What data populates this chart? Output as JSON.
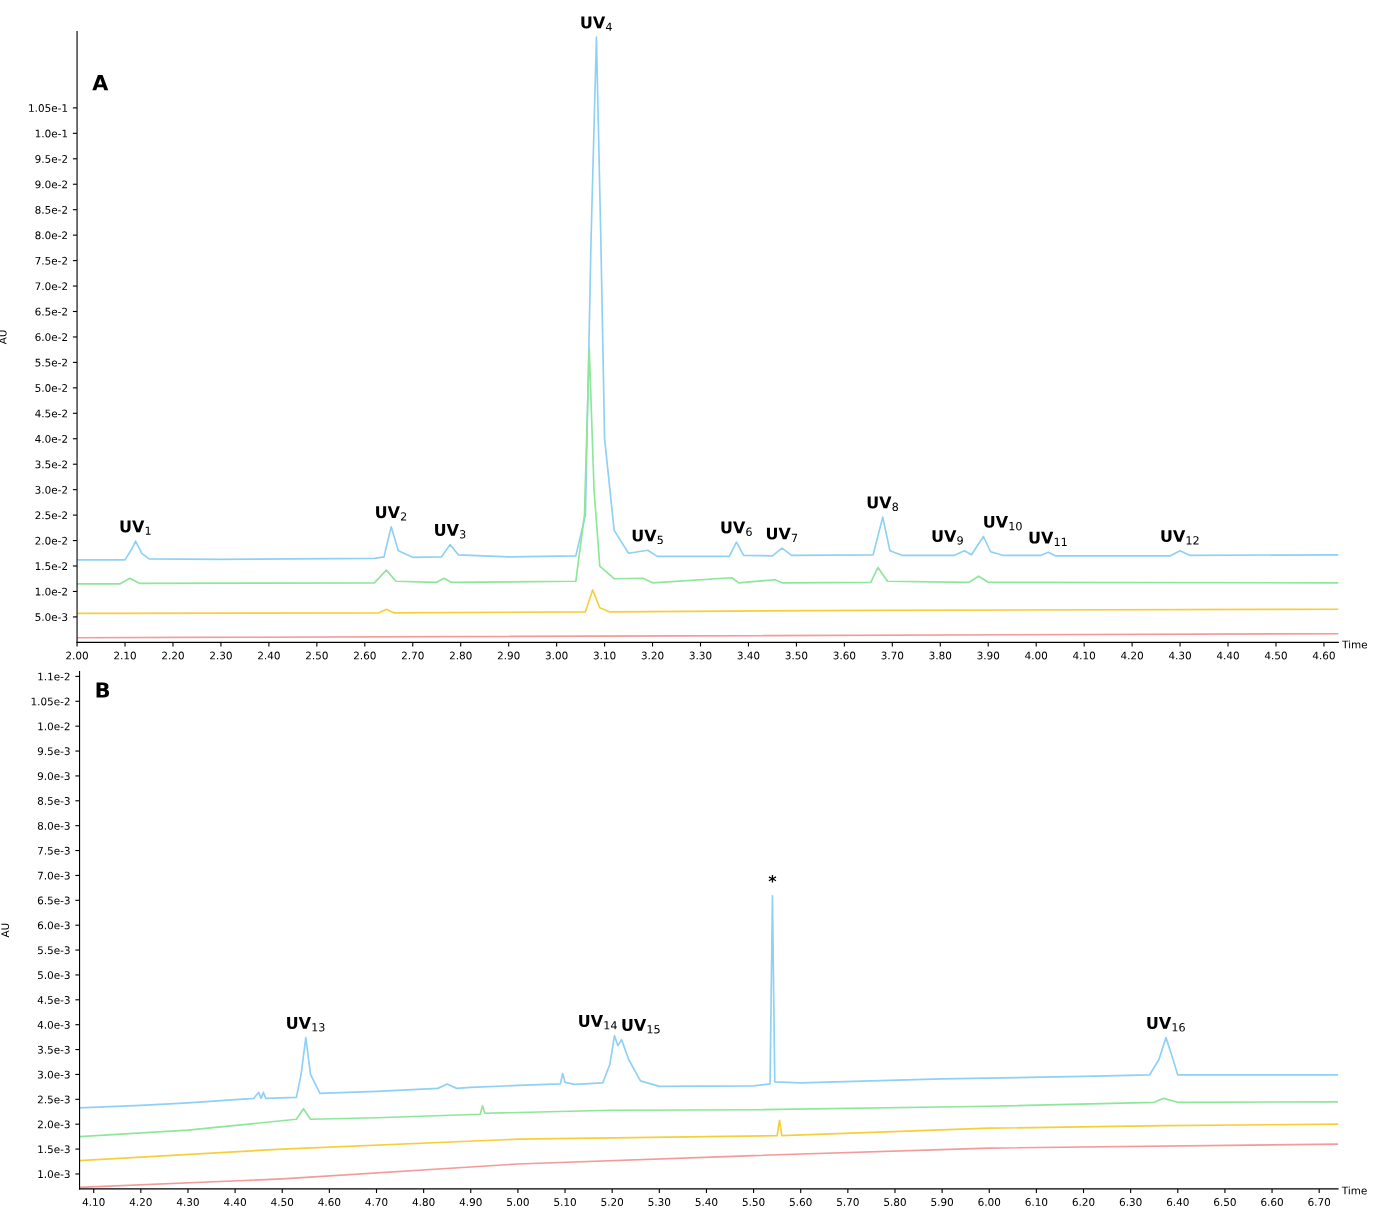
{
  "chart_data": [
    {
      "type": "line",
      "title": "A",
      "xlabel": "Time",
      "ylabel": "AU",
      "grid": false,
      "marker": "none",
      "line_style": "solid",
      "xlim": [
        2.0,
        4.63
      ],
      "ylim": [
        0,
        0.12
      ],
      "xticks": [
        {
          "value": 2.0,
          "label": "2.00"
        },
        {
          "value": 2.1,
          "label": "2.10"
        },
        {
          "value": 2.2,
          "label": "2.20"
        },
        {
          "value": 2.3,
          "label": "2.30"
        },
        {
          "value": 2.4,
          "label": "2.40"
        },
        {
          "value": 2.5,
          "label": "2.50"
        },
        {
          "value": 2.6,
          "label": "2.60"
        },
        {
          "value": 2.7,
          "label": "2.70"
        },
        {
          "value": 2.8,
          "label": "2.80"
        },
        {
          "value": 2.9,
          "label": "2.90"
        },
        {
          "value": 3.0,
          "label": "3.00"
        },
        {
          "value": 3.1,
          "label": "3.10"
        },
        {
          "value": 3.2,
          "label": "3.20"
        },
        {
          "value": 3.3,
          "label": "3.30"
        },
        {
          "value": 3.4,
          "label": "3.40"
        },
        {
          "value": 3.5,
          "label": "3.50"
        },
        {
          "value": 3.6,
          "label": "3.60"
        },
        {
          "value": 3.7,
          "label": "3.70"
        },
        {
          "value": 3.8,
          "label": "3.80"
        },
        {
          "value": 3.9,
          "label": "3.90"
        },
        {
          "value": 4.0,
          "label": "4.00"
        },
        {
          "value": 4.1,
          "label": "4.10"
        },
        {
          "value": 4.2,
          "label": "4.20"
        },
        {
          "value": 4.3,
          "label": "4.30"
        },
        {
          "value": 4.4,
          "label": "4.40"
        },
        {
          "value": 4.5,
          "label": "4.50"
        },
        {
          "value": 4.6,
          "label": "4.60"
        }
      ],
      "yticks": [
        {
          "value": 0.005,
          "label": "5.0e-3"
        },
        {
          "value": 0.01,
          "label": "1.0e-2"
        },
        {
          "value": 0.015,
          "label": "1.5e-2"
        },
        {
          "value": 0.02,
          "label": "2.0e-2"
        },
        {
          "value": 0.025,
          "label": "2.5e-2"
        },
        {
          "value": 0.03,
          "label": "3.0e-2"
        },
        {
          "value": 0.035,
          "label": "3.5e-2"
        },
        {
          "value": 0.04,
          "label": "4.0e-2"
        },
        {
          "value": 0.045,
          "label": "4.5e-2"
        },
        {
          "value": 0.05,
          "label": "5.0e-2"
        },
        {
          "value": 0.055,
          "label": "5.5e-2"
        },
        {
          "value": 0.06,
          "label": "6.0e-2"
        },
        {
          "value": 0.065,
          "label": "6.5e-2"
        },
        {
          "value": 0.07,
          "label": "7.0e-2"
        },
        {
          "value": 0.075,
          "label": "7.5e-2"
        },
        {
          "value": 0.08,
          "label": "8.0e-2"
        },
        {
          "value": 0.085,
          "label": "8.5e-2"
        },
        {
          "value": 0.09,
          "label": "9.0e-2"
        },
        {
          "value": 0.095,
          "label": "9.5e-2"
        },
        {
          "value": 0.1,
          "label": "1.0e-1"
        },
        {
          "value": 0.105,
          "label": "1.05e-1"
        }
      ],
      "series": [
        {
          "color": "#8fd0f5",
          "x": [
            2.0,
            2.1,
            2.115,
            2.122,
            2.135,
            2.15,
            2.3,
            2.62,
            2.64,
            2.655,
            2.67,
            2.7,
            2.76,
            2.778,
            2.795,
            2.9,
            3.04,
            3.06,
            3.072,
            3.083,
            3.092,
            3.1,
            3.12,
            3.15,
            3.19,
            3.21,
            3.36,
            3.375,
            3.39,
            3.45,
            3.47,
            3.49,
            3.66,
            3.68,
            3.695,
            3.72,
            3.83,
            3.85,
            3.865,
            3.89,
            3.905,
            3.93,
            4.01,
            4.025,
            4.04,
            4.28,
            4.3,
            4.32,
            4.63
          ],
          "values": [
            0.0162,
            0.0162,
            0.0185,
            0.0199,
            0.0175,
            0.0164,
            0.0163,
            0.0165,
            0.0168,
            0.0227,
            0.018,
            0.0167,
            0.0168,
            0.0192,
            0.0172,
            0.0168,
            0.017,
            0.025,
            0.08,
            0.1189,
            0.08,
            0.04,
            0.022,
            0.0175,
            0.0181,
            0.0169,
            0.0169,
            0.0197,
            0.0171,
            0.017,
            0.0185,
            0.0171,
            0.0172,
            0.0246,
            0.018,
            0.0171,
            0.0171,
            0.018,
            0.0172,
            0.0208,
            0.0178,
            0.0171,
            0.0171,
            0.0177,
            0.017,
            0.017,
            0.018,
            0.0171,
            0.0172
          ]
        },
        {
          "color": "#8ee69a",
          "x": [
            2.0,
            2.09,
            2.11,
            2.13,
            2.62,
            2.645,
            2.665,
            2.75,
            2.765,
            2.78,
            3.04,
            3.058,
            3.068,
            3.078,
            3.09,
            3.12,
            3.18,
            3.2,
            3.365,
            3.38,
            3.455,
            3.47,
            3.655,
            3.67,
            3.69,
            3.86,
            3.88,
            3.9,
            4.63
          ],
          "values": [
            0.0115,
            0.0115,
            0.0126,
            0.0116,
            0.0117,
            0.0142,
            0.012,
            0.0118,
            0.0126,
            0.0118,
            0.012,
            0.025,
            0.0578,
            0.03,
            0.015,
            0.0125,
            0.0126,
            0.0117,
            0.0127,
            0.0117,
            0.0123,
            0.0117,
            0.0118,
            0.0147,
            0.012,
            0.0118,
            0.013,
            0.0118,
            0.0117
          ]
        },
        {
          "color": "#f5cf3a",
          "x": [
            2.0,
            2.63,
            2.645,
            2.66,
            3.06,
            3.075,
            3.09,
            3.11,
            3.67,
            4.63
          ],
          "values": [
            0.0057,
            0.0058,
            0.0065,
            0.0058,
            0.006,
            0.0103,
            0.0068,
            0.006,
            0.0063,
            0.0065
          ]
        },
        {
          "color": "#f49a9a",
          "x": [
            2.0,
            4.63
          ],
          "values": [
            0.0009,
            0.0017
          ]
        }
      ],
      "annotations": [
        {
          "text": "UV$_{1}$",
          "x": 2.122,
          "y": 0.0199
        },
        {
          "text": "UV$_{2}$",
          "x": 2.655,
          "y": 0.0227
        },
        {
          "text": "UV$_{3}$",
          "x": 2.778,
          "y": 0.0192
        },
        {
          "text": "UV$_{4}$",
          "x": 3.083,
          "y": 0.1189
        },
        {
          "text": "UV$_{5}$",
          "x": 3.19,
          "y": 0.0181
        },
        {
          "text": "UV$_{6}$",
          "x": 3.375,
          "y": 0.0197
        },
        {
          "text": "UV$_{7}$",
          "x": 3.47,
          "y": 0.0185
        },
        {
          "text": "UV$_{8}$",
          "x": 3.68,
          "y": 0.0246
        },
        {
          "text": "UV$_{9}$",
          "x": 3.85,
          "y": 0.018
        },
        {
          "text": "UV$_{10}$",
          "x": 3.89,
          "y": 0.0208
        },
        {
          "text": "UV$_{11}$",
          "x": 4.025,
          "y": 0.0177
        },
        {
          "text": "UV$_{12}$",
          "x": 4.3,
          "y": 0.018
        }
      ]
    },
    {
      "type": "line",
      "title": "B",
      "xlabel": "Time",
      "ylabel": "AU",
      "grid": false,
      "marker": "none",
      "line_style": "solid",
      "xlim": [
        4.07,
        6.74
      ],
      "ylim": [
        0.0007,
        0.0111
      ],
      "xticks": [
        {
          "value": 4.1,
          "label": "4.10"
        },
        {
          "value": 4.2,
          "label": "4.20"
        },
        {
          "value": 4.3,
          "label": "4.30"
        },
        {
          "value": 4.4,
          "label": "4.40"
        },
        {
          "value": 4.5,
          "label": "4.50"
        },
        {
          "value": 4.6,
          "label": "4.60"
        },
        {
          "value": 4.7,
          "label": "4.70"
        },
        {
          "value": 4.8,
          "label": "4.80"
        },
        {
          "value": 4.9,
          "label": "4.90"
        },
        {
          "value": 5.0,
          "label": "5.00"
        },
        {
          "value": 5.1,
          "label": "5.10"
        },
        {
          "value": 5.2,
          "label": "5.20"
        },
        {
          "value": 5.3,
          "label": "5.30"
        },
        {
          "value": 5.4,
          "label": "5.40"
        },
        {
          "value": 5.5,
          "label": "5.50"
        },
        {
          "value": 5.6,
          "label": "5.60"
        },
        {
          "value": 5.7,
          "label": "5.70"
        },
        {
          "value": 5.8,
          "label": "5.80"
        },
        {
          "value": 5.9,
          "label": "5.90"
        },
        {
          "value": 6.0,
          "label": "6.00"
        },
        {
          "value": 6.1,
          "label": "6.10"
        },
        {
          "value": 6.2,
          "label": "6.20"
        },
        {
          "value": 6.3,
          "label": "6.30"
        },
        {
          "value": 6.4,
          "label": "6.40"
        },
        {
          "value": 6.5,
          "label": "6.50"
        },
        {
          "value": 6.6,
          "label": "6.60"
        },
        {
          "value": 6.7,
          "label": "6.70"
        }
      ],
      "yticks": [
        {
          "value": 0.001,
          "label": "1.0e-3"
        },
        {
          "value": 0.0015,
          "label": "1.5e-3"
        },
        {
          "value": 0.002,
          "label": "2.0e-3"
        },
        {
          "value": 0.0025,
          "label": "2.5e-3"
        },
        {
          "value": 0.003,
          "label": "3.0e-3"
        },
        {
          "value": 0.0035,
          "label": "3.5e-3"
        },
        {
          "value": 0.004,
          "label": "4.0e-3"
        },
        {
          "value": 0.0045,
          "label": "4.5e-3"
        },
        {
          "value": 0.005,
          "label": "5.0e-3"
        },
        {
          "value": 0.0055,
          "label": "5.5e-3"
        },
        {
          "value": 0.006,
          "label": "6.0e-3"
        },
        {
          "value": 0.0065,
          "label": "6.5e-3"
        },
        {
          "value": 0.007,
          "label": "7.0e-3"
        },
        {
          "value": 0.0075,
          "label": "7.5e-3"
        },
        {
          "value": 0.008,
          "label": "8.0e-3"
        },
        {
          "value": 0.0085,
          "label": "8.5e-3"
        },
        {
          "value": 0.009,
          "label": "9.0e-3"
        },
        {
          "value": 0.0095,
          "label": "9.5e-3"
        },
        {
          "value": 0.01,
          "label": "1.0e-2"
        },
        {
          "value": 0.0105,
          "label": "1.05e-2"
        },
        {
          "value": 0.011,
          "label": "1.1e-2"
        }
      ],
      "series": [
        {
          "color": "#8fd0f5",
          "x": [
            4.07,
            4.2,
            4.3,
            4.44,
            4.45,
            4.455,
            4.46,
            4.465,
            4.53,
            4.54,
            4.55,
            4.56,
            4.58,
            4.7,
            4.83,
            4.85,
            4.87,
            4.9,
            5.0,
            5.09,
            5.095,
            5.1,
            5.12,
            5.18,
            5.195,
            5.205,
            5.212,
            5.22,
            5.235,
            5.26,
            5.3,
            5.5,
            5.535,
            5.54,
            5.545,
            5.6,
            5.9,
            6.2,
            6.34,
            6.36,
            6.375,
            6.39,
            6.4,
            6.74
          ],
          "values": [
            0.00233,
            0.00238,
            0.00243,
            0.00252,
            0.00264,
            0.00252,
            0.00264,
            0.00252,
            0.00254,
            0.003,
            0.00374,
            0.003,
            0.00262,
            0.00266,
            0.00272,
            0.00281,
            0.00272,
            0.00274,
            0.00278,
            0.00281,
            0.00302,
            0.00284,
            0.0028,
            0.00283,
            0.0032,
            0.00378,
            0.00358,
            0.0037,
            0.0033,
            0.00287,
            0.00276,
            0.00277,
            0.00281,
            0.00659,
            0.00285,
            0.00283,
            0.00291,
            0.00296,
            0.00299,
            0.0033,
            0.00374,
            0.0033,
            0.00299,
            0.00299
          ]
        },
        {
          "color": "#8ee69a",
          "x": [
            4.07,
            4.3,
            4.53,
            4.545,
            4.56,
            4.7,
            4.92,
            4.925,
            4.93,
            5.2,
            5.5,
            6.0,
            6.35,
            6.37,
            6.4,
            6.74
          ],
          "values": [
            0.00175,
            0.00188,
            0.0021,
            0.00231,
            0.0021,
            0.00213,
            0.0022,
            0.00237,
            0.00222,
            0.00228,
            0.00229,
            0.00236,
            0.00244,
            0.00252,
            0.00244,
            0.00245
          ]
        },
        {
          "color": "#f5cf3a",
          "x": [
            4.07,
            4.5,
            5.0,
            5.55,
            5.555,
            5.56,
            6.0,
            6.37,
            6.74
          ],
          "values": [
            0.00127,
            0.0015,
            0.0017,
            0.00177,
            0.00208,
            0.00177,
            0.00192,
            0.00197,
            0.002
          ]
        },
        {
          "color": "#f49a9a",
          "x": [
            4.07,
            4.5,
            5.0,
            5.5,
            6.0,
            6.74
          ],
          "values": [
            0.00073,
            0.0009,
            0.0012,
            0.00137,
            0.00152,
            0.0016
          ]
        }
      ],
      "annotations": [
        {
          "text": "UV$_{13}$",
          "x": 4.55,
          "y": 0.00374
        },
        {
          "text": "UV$_{14}$",
          "x": 5.205,
          "y": 0.00378
        },
        {
          "text": "UV$_{15}$",
          "x": 5.22,
          "y": 0.0037
        },
        {
          "text": "*",
          "x": 5.54,
          "y": 0.00659
        },
        {
          "text": "UV$_{16}$",
          "x": 6.375,
          "y": 0.00374
        }
      ]
    }
  ]
}
